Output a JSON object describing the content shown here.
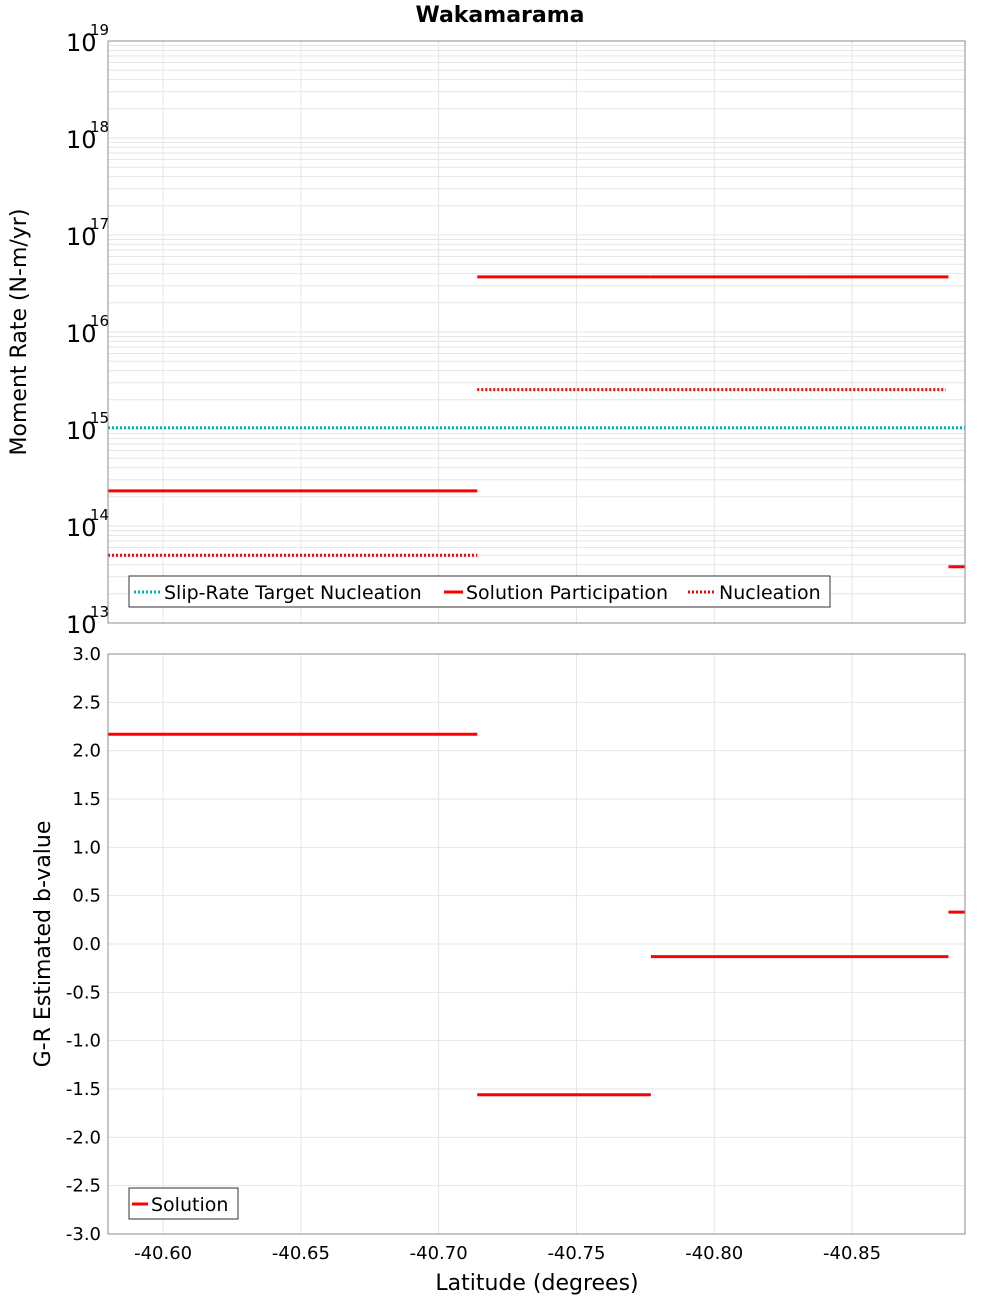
{
  "title": "Wakamarama",
  "colors": {
    "target": "#00b3b3",
    "solution": "#ff0000",
    "frame": "#8c8c8c",
    "grid": "#e6e6e6"
  },
  "chart_data": [
    {
      "type": "line",
      "name": "moment-rate",
      "ylabel": "Moment Rate (N-m/yr)",
      "yscale": "log",
      "ylim": [
        10000000000000.0,
        1e+19
      ],
      "xlim": [
        -40.58,
        -40.891
      ],
      "x_reversed": true,
      "ytick_base": "10",
      "ytick_exponents": [
        "19",
        "18",
        "17",
        "16",
        "15",
        "14",
        "13"
      ],
      "series": [
        {
          "name": "Slip-Rate Target Nucleation",
          "style": "dotted",
          "color": "#00b3b3",
          "segments": [
            {
              "x": [
                -40.58,
                -40.891
              ],
              "y": 1030000000000000.0
            }
          ]
        },
        {
          "name": "Solution Participation",
          "style": "solid",
          "color": "#ff0000",
          "segments": [
            {
              "x": [
                -40.58,
                -40.714
              ],
              "y": 230000000000000.0
            },
            {
              "x": [
                -40.714,
                -40.777
              ],
              "y": 3.7e+16
            },
            {
              "x": [
                -40.777,
                -40.832
              ],
              "y": 3.7e+16
            },
            {
              "x": [
                -40.832,
                -40.885
              ],
              "y": 3.7e+16
            },
            {
              "x": [
                -40.885,
                -40.891
              ],
              "y": 38000000000000.0
            }
          ]
        },
        {
          "name": "Nucleation",
          "style": "dotted",
          "color": "#ff0000",
          "segments": [
            {
              "x": [
                -40.58,
                -40.714
              ],
              "y": 50000000000000.0
            },
            {
              "x": [
                -40.714,
                -40.884
              ],
              "y": 2550000000000000.0
            }
          ]
        }
      ],
      "legend": {
        "position": "bottom-left",
        "entries": [
          "Slip-Rate Target Nucleation",
          "Solution Participation",
          "Nucleation"
        ]
      }
    },
    {
      "type": "line",
      "name": "b-value",
      "ylabel": "G-R Estimated b-value",
      "xlabel": "Latitude (degrees)",
      "ylim": [
        -3.0,
        3.0
      ],
      "xlim": [
        -40.58,
        -40.891
      ],
      "x_reversed": true,
      "yticks": [
        "3.0",
        "2.5",
        "2.0",
        "1.5",
        "1.0",
        "0.5",
        "0.0",
        "-0.5",
        "-1.0",
        "-1.5",
        "-2.0",
        "-2.5",
        "-3.0"
      ],
      "ytick_values": [
        3.0,
        2.5,
        2.0,
        1.5,
        1.0,
        0.5,
        0.0,
        -0.5,
        -1.0,
        -1.5,
        -2.0,
        -2.5,
        -3.0
      ],
      "xticks": [
        "-40.60",
        "-40.65",
        "-40.70",
        "-40.75",
        "-40.80",
        "-40.85"
      ],
      "xtick_values": [
        -40.6,
        -40.65,
        -40.7,
        -40.75,
        -40.8,
        -40.85
      ],
      "series": [
        {
          "name": "Solution",
          "style": "solid",
          "color": "#ff0000",
          "segments": [
            {
              "x": [
                -40.58,
                -40.714
              ],
              "y": 2.17
            },
            {
              "x": [
                -40.714,
                -40.777
              ],
              "y": -1.56
            },
            {
              "x": [
                -40.777,
                -40.832
              ],
              "y": -0.13
            },
            {
              "x": [
                -40.832,
                -40.885
              ],
              "y": -0.13
            },
            {
              "x": [
                -40.885,
                -40.891
              ],
              "y": 0.33
            }
          ]
        }
      ],
      "legend": {
        "position": "bottom-left",
        "entries": [
          "Solution"
        ]
      }
    }
  ]
}
